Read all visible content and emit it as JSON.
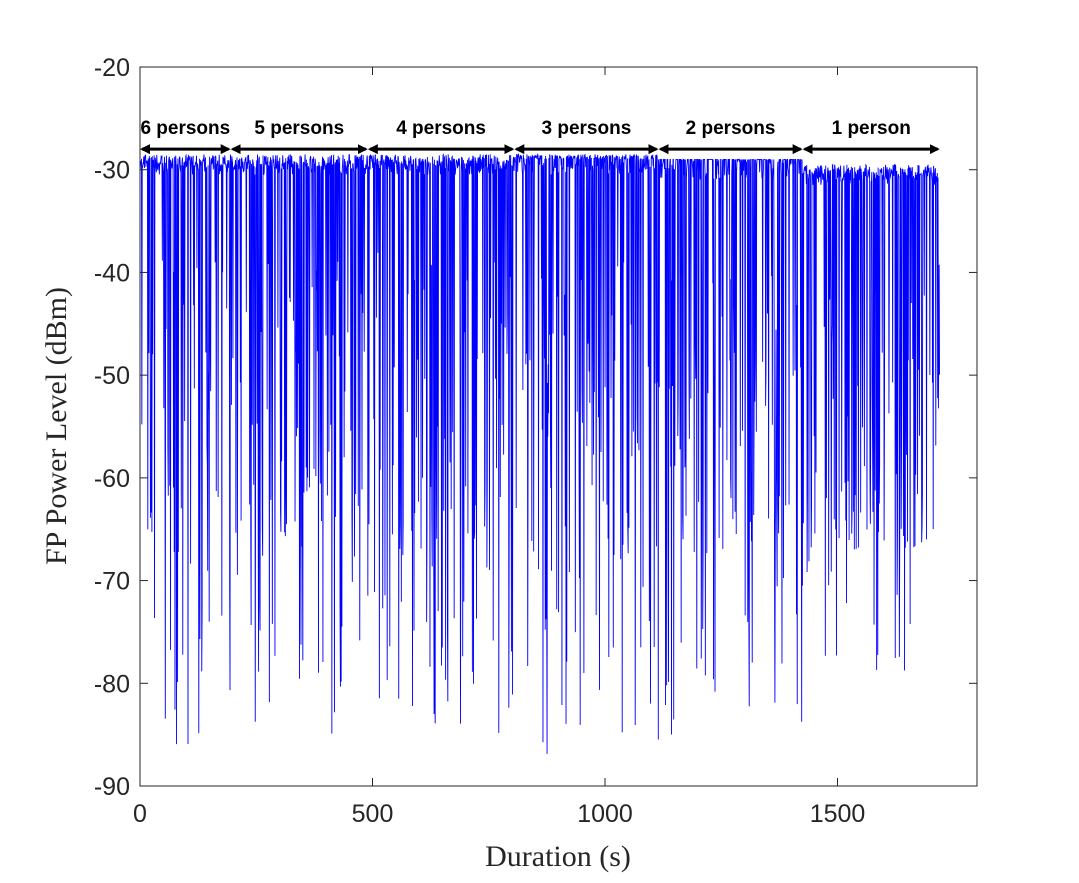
{
  "chart_data": {
    "type": "line",
    "title": "",
    "xlabel": "Duration (s)",
    "ylabel": "FP Power Level (dBm)",
    "xlim": [
      0,
      1800
    ],
    "ylim": [
      -90,
      -20
    ],
    "xticks": [
      "0",
      "500",
      "1000",
      "1500"
    ],
    "yticks": [
      "-20",
      "-30",
      "-40",
      "-50",
      "-60",
      "-70",
      "-80",
      "-90"
    ],
    "xtick_values": [
      0,
      500,
      1000,
      1500
    ],
    "ytick_values": [
      -20,
      -30,
      -40,
      -50,
      -60,
      -70,
      -80,
      -90
    ],
    "grid": false,
    "series_color": "#0000ff",
    "segments": [
      {
        "label": "6 persons",
        "x_start": 0,
        "x_end": 195,
        "top": -28.5,
        "base": -33,
        "deep_floor": -89
      },
      {
        "label": "5 persons",
        "x_start": 195,
        "x_end": 490,
        "top": -28.5,
        "base": -33,
        "deep_floor": -85
      },
      {
        "label": "4 persons",
        "x_start": 490,
        "x_end": 805,
        "top": -28.5,
        "base": -33,
        "deep_floor": -85
      },
      {
        "label": "3 persons",
        "x_start": 805,
        "x_end": 1115,
        "top": -28.5,
        "base": -34,
        "deep_floor": -87
      },
      {
        "label": "2 persons",
        "x_start": 1115,
        "x_end": 1425,
        "top": -29,
        "base": -35,
        "deep_floor": -85
      },
      {
        "label": "1 person",
        "x_start": 1425,
        "x_end": 1720,
        "top": -29.5,
        "base": -34,
        "deep_floor": -79
      }
    ],
    "annotation_y": -28
  }
}
